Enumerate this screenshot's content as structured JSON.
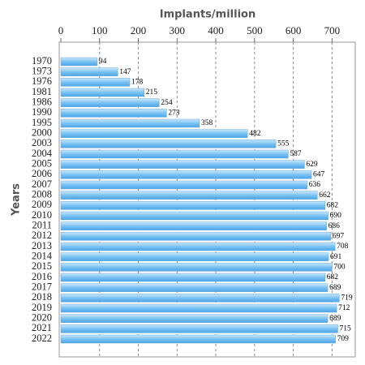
{
  "chart_data": {
    "type": "bar",
    "orientation": "horizontal",
    "x_label": "Implants/million",
    "y_label": "Years",
    "categories": [
      "1970",
      "1973",
      "1976",
      "1981",
      "1986",
      "1990",
      "1995",
      "2000",
      "2003",
      "2004",
      "2005",
      "2006",
      "2007",
      "2008",
      "2009",
      "2010",
      "2011",
      "2012",
      "2013",
      "2014",
      "2015",
      "2016",
      "2017",
      "2018",
      "2019",
      "2020",
      "2021",
      "2022"
    ],
    "values": [
      94,
      147,
      178,
      215,
      254,
      273,
      358,
      482,
      555,
      587,
      629,
      647,
      636,
      662,
      682,
      690,
      686,
      697,
      708,
      691,
      700,
      682,
      689,
      719,
      712,
      689,
      715,
      709
    ],
    "color": "#4aa6ea",
    "xlim": [
      0,
      760
    ],
    "xticks": [
      0,
      100,
      200,
      300,
      400,
      500,
      600,
      700
    ],
    "grid": true
  }
}
